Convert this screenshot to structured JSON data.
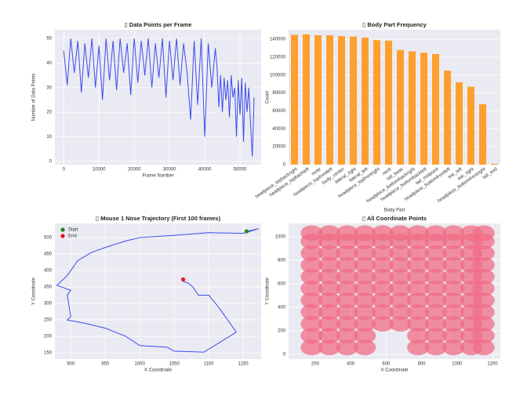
{
  "chart_data": [
    {
      "type": "line",
      "title": "▯ Data Points per Frame",
      "x_label": "Frame Number",
      "y_label": "Number of Data Points",
      "color": "#3b4cf0",
      "x": [
        0,
        1000,
        2000,
        3000,
        4000,
        5000,
        6000,
        7000,
        8000,
        9000,
        10000,
        11000,
        12000,
        13000,
        14000,
        15000,
        16000,
        17000,
        18000,
        19000,
        20000,
        21000,
        22000,
        23000,
        24000,
        25000,
        26000,
        27000,
        28000,
        29000,
        30000,
        31000,
        32000,
        33000,
        34000,
        35000,
        36000,
        37000,
        38000,
        39000,
        40000,
        41000,
        42000,
        43000,
        43500,
        44000,
        44500,
        45000,
        45500,
        46000,
        46500,
        47000,
        47500,
        48000,
        48500,
        49000,
        49500,
        50000,
        50500,
        51000,
        51500,
        52000,
        52500,
        53000,
        53500,
        54000
      ],
      "values": [
        45,
        31,
        50,
        36,
        49,
        28,
        48,
        34,
        50,
        30,
        47,
        25,
        50,
        33,
        49,
        29,
        50,
        36,
        48,
        27,
        50,
        32,
        49,
        35,
        50,
        30,
        48,
        34,
        50,
        26,
        49,
        33,
        50,
        31,
        48,
        36,
        17,
        49,
        23,
        50,
        10,
        48,
        30,
        46,
        38,
        22,
        35,
        20,
        34,
        25,
        33,
        18,
        35,
        26,
        30,
        10,
        33,
        19,
        34,
        8,
        32,
        20,
        30,
        15,
        2,
        26
      ],
      "xlim": [
        -2500,
        56000
      ],
      "ylim": [
        -1.3,
        53.5
      ],
      "xticks": [
        0,
        10000,
        20000,
        30000,
        40000,
        50000
      ],
      "yticks": [
        0,
        10,
        20,
        30,
        40,
        50
      ],
      "grid": true
    },
    {
      "type": "bar",
      "title": "▯ Body Part Frequency",
      "x_label": "Body Part",
      "y_label": "Count",
      "color": "#ff9f2e",
      "categories": [
        "headpiece_topbackright",
        "headpiece_topbackleft",
        "nose",
        "headpiece_topfrontleft",
        "body_center",
        "lateral_right",
        "lateral_left",
        "headpiece_topfrontright",
        "neck",
        "tail_base",
        "headpiece_bottombackright",
        "headpiece_bottombackleft",
        "tail_midpoint",
        "headpiece_bottomfrontleft",
        "ear_left",
        "ear_right",
        "headpiece_bottomfrontright",
        "tail_end"
      ],
      "values": [
        145000,
        145500,
        144500,
        144500,
        143500,
        143000,
        142000,
        139000,
        138500,
        128000,
        126500,
        125000,
        123500,
        105000,
        92000,
        87000,
        67500,
        1000
      ],
      "ylim": [
        0,
        150600
      ],
      "yticks": [
        0,
        20000,
        40000,
        60000,
        80000,
        100000,
        120000,
        140000
      ],
      "grid": true
    },
    {
      "type": "line",
      "title": "▯ Mouse 1 Nose Trajectory (First 100 frames)",
      "x_label": "X Coordinate",
      "y_label": "Y Coordinate",
      "color": "#3b4cf0",
      "x": [
        1155,
        1172,
        1160,
        1150,
        1100,
        1050,
        1000,
        980,
        950,
        930,
        910,
        900,
        895,
        880,
        900,
        895,
        900,
        895,
        920,
        950,
        980,
        1000,
        1040,
        1050,
        1093,
        1140,
        1120,
        1110,
        1100,
        1085,
        1077,
        1070,
        1063,
        1063
      ],
      "values": [
        519,
        527,
        519,
        513,
        515,
        507,
        500,
        490,
        470,
        455,
        430,
        400,
        385,
        355,
        340,
        325,
        260,
        250,
        240,
        225,
        200,
        172,
        167,
        155,
        152,
        213,
        272,
        300,
        325,
        325,
        350,
        362,
        367,
        373
      ],
      "markers": [
        {
          "name": "Start",
          "color": "#1a8a1a",
          "x": 1155,
          "y": 519
        },
        {
          "name": "End",
          "color": "#e8141e",
          "x": 1063,
          "y": 373
        }
      ],
      "legend": "upper left",
      "xlim": [
        877,
        1176
      ],
      "ylim": [
        131,
        543
      ],
      "xticks": [
        900,
        950,
        1000,
        1050,
        1100,
        1150
      ],
      "yticks": [
        150,
        200,
        250,
        300,
        350,
        400,
        450,
        500
      ],
      "grid": true
    },
    {
      "type": "scatter",
      "title": "▯ All Coordinate Points",
      "x_label": "X Coordinate",
      "y_label": "Y Coordinate",
      "color": "#f06c84",
      "x": [
        180,
        280,
        380,
        480,
        780,
        880,
        980,
        1080,
        1150,
        180,
        280,
        380,
        480,
        780,
        880,
        980,
        1080,
        1150,
        180,
        280,
        380,
        480,
        580,
        680,
        780,
        880,
        980,
        1080,
        1150,
        180,
        280,
        380,
        480,
        580,
        680,
        780,
        880,
        980,
        1080,
        1150,
        180,
        280,
        380,
        480,
        580,
        680,
        780,
        880,
        980,
        1080,
        1150,
        180,
        280,
        380,
        480,
        580,
        680,
        780,
        880,
        980,
        1080,
        1150,
        180,
        280,
        380,
        480,
        580,
        680,
        780,
        880,
        980,
        1080,
        1150,
        180,
        280,
        380,
        480,
        580,
        680,
        780,
        880,
        980,
        1080,
        1150,
        180,
        280,
        380,
        480,
        580,
        680,
        780,
        880,
        980,
        1080,
        1150,
        180,
        280,
        380,
        480,
        580,
        680,
        780,
        880,
        980,
        1080,
        1150,
        180,
        280,
        380,
        480,
        580,
        680,
        780,
        880,
        980,
        1080,
        1150
      ],
      "y": [
        60,
        60,
        60,
        60,
        60,
        60,
        60,
        60,
        60,
        160,
        160,
        160,
        160,
        160,
        160,
        160,
        160,
        160,
        260,
        260,
        260,
        260,
        260,
        260,
        260,
        260,
        260,
        260,
        260,
        360,
        360,
        360,
        360,
        360,
        360,
        360,
        360,
        360,
        360,
        360,
        460,
        460,
        460,
        460,
        460,
        460,
        460,
        460,
        460,
        460,
        460,
        560,
        560,
        560,
        560,
        560,
        560,
        560,
        560,
        560,
        560,
        560,
        660,
        660,
        660,
        660,
        660,
        660,
        660,
        660,
        660,
        660,
        660,
        760,
        760,
        760,
        760,
        760,
        760,
        760,
        760,
        760,
        760,
        760,
        860,
        860,
        860,
        860,
        860,
        860,
        860,
        860,
        860,
        860,
        860,
        960,
        960,
        960,
        960,
        960,
        960,
        960,
        960,
        960,
        960,
        960,
        1030,
        1030,
        1030,
        1030,
        1030,
        1030,
        1030,
        1030,
        1030,
        1030,
        1030
      ],
      "xlim": [
        50,
        1244
      ],
      "ylim": [
        -39,
        1112
      ],
      "xticks": [
        200,
        400,
        600,
        800,
        1000,
        1200
      ],
      "yticks": [
        0,
        200,
        400,
        600,
        800,
        1000
      ],
      "grid": true
    }
  ]
}
